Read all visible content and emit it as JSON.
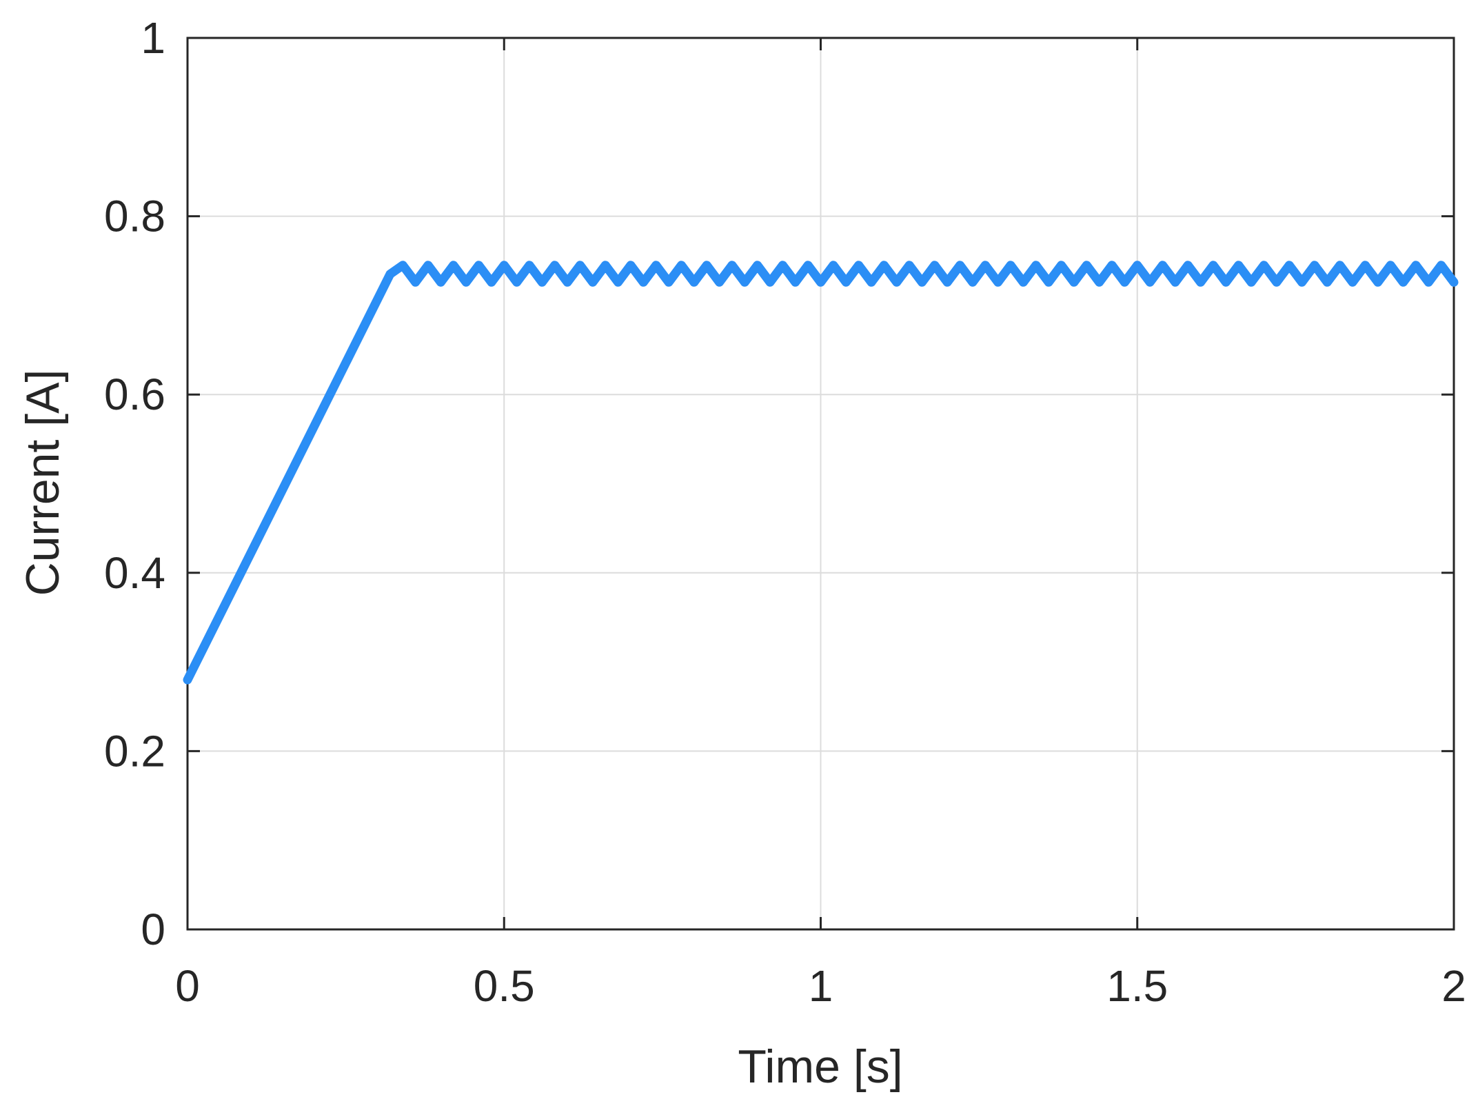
{
  "chart_data": {
    "type": "line",
    "xlabel": "Time [s]",
    "ylabel": "Current [A]",
    "color": "#2b8ef5",
    "grid": true,
    "xlim": [
      0,
      2
    ],
    "ylim": [
      0,
      1
    ],
    "xticks": [
      0,
      0.5,
      1,
      1.5,
      2
    ],
    "yticks": [
      0,
      0.2,
      0.4,
      0.6,
      0.8,
      1
    ],
    "x": [
      0,
      0.32,
      0.34,
      0.36,
      0.38,
      0.4,
      0.42,
      0.44,
      0.46,
      0.48,
      0.5,
      0.52,
      0.54,
      0.56,
      0.58,
      0.6,
      0.62,
      0.64,
      0.66,
      0.68,
      0.7,
      0.72,
      0.74,
      0.76,
      0.78,
      0.8,
      0.82,
      0.84,
      0.86,
      0.88,
      0.9,
      0.92,
      0.94,
      0.96,
      0.98,
      1,
      1.02,
      1.04,
      1.06,
      1.08,
      1.1,
      1.12,
      1.14,
      1.16,
      1.18,
      1.2,
      1.22,
      1.24,
      1.26,
      1.28,
      1.3,
      1.32,
      1.34,
      1.36,
      1.38,
      1.4,
      1.42,
      1.44,
      1.46,
      1.48,
      1.5,
      1.52,
      1.54,
      1.56,
      1.58,
      1.6,
      1.62,
      1.64,
      1.66,
      1.68,
      1.7,
      1.72,
      1.74,
      1.76,
      1.78,
      1.8,
      1.82,
      1.84,
      1.86,
      1.88,
      1.9,
      1.92,
      1.94,
      1.96,
      1.98,
      2
    ],
    "values": [
      0.28,
      0.735,
      0.745,
      0.726,
      0.745,
      0.726,
      0.745,
      0.726,
      0.745,
      0.726,
      0.745,
      0.726,
      0.745,
      0.726,
      0.745,
      0.726,
      0.745,
      0.726,
      0.745,
      0.726,
      0.745,
      0.726,
      0.745,
      0.726,
      0.745,
      0.726,
      0.745,
      0.726,
      0.745,
      0.726,
      0.745,
      0.726,
      0.745,
      0.726,
      0.745,
      0.726,
      0.745,
      0.726,
      0.745,
      0.726,
      0.745,
      0.726,
      0.745,
      0.726,
      0.745,
      0.726,
      0.745,
      0.726,
      0.745,
      0.726,
      0.745,
      0.726,
      0.745,
      0.726,
      0.745,
      0.726,
      0.745,
      0.726,
      0.745,
      0.726,
      0.745,
      0.726,
      0.745,
      0.726,
      0.745,
      0.726,
      0.745,
      0.726,
      0.745,
      0.726,
      0.745,
      0.726,
      0.745,
      0.726,
      0.745,
      0.726,
      0.745,
      0.726,
      0.745,
      0.726,
      0.745,
      0.726,
      0.745,
      0.726,
      0.745,
      0.726
    ]
  }
}
